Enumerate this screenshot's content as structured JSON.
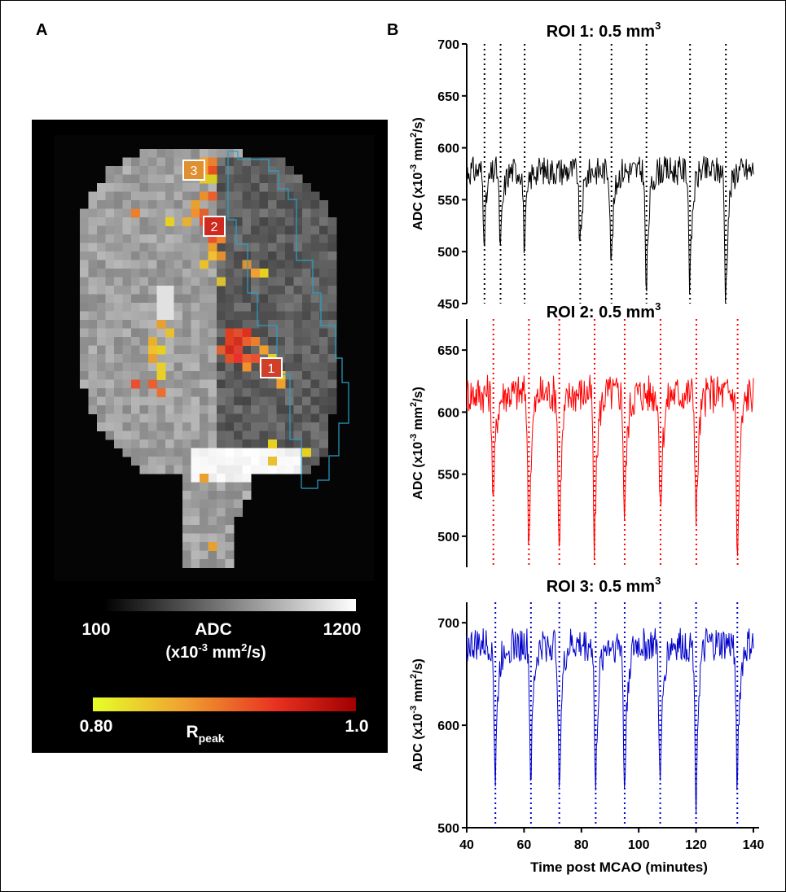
{
  "panel_labels": {
    "a": "A",
    "b": "B"
  },
  "brain_map": {
    "roi_markers": [
      "1",
      "2",
      "3"
    ],
    "adc_scale": {
      "min_label": "100",
      "max_label": "1200",
      "title": "ADC",
      "unit_prefix": "(x10",
      "unit_exp": "-3",
      "unit_mid": " mm",
      "unit_exp2": "2",
      "unit_suffix": "/s)"
    },
    "rpeak_scale": {
      "min_label": "0.80",
      "max_label": "1.0",
      "title": "R",
      "title_sub": "peak"
    },
    "colors": {
      "background": "#000000",
      "rpeak_low": "#e6f51e",
      "rpeak_mid": "#f08c28",
      "rpeak_high": "#a00000"
    }
  },
  "chart_data": [
    {
      "type": "line",
      "title": "ROI 1: 0.5 mm",
      "title_exp": "3",
      "ylabel_main": "ADC (x10",
      "ylabel_exp": "-3",
      "ylabel_mid": " mm",
      "ylabel_exp2": "2",
      "ylabel_end": "/s)",
      "color": "#000000",
      "ylim": [
        450,
        700
      ],
      "yticks": [
        450,
        500,
        550,
        600,
        650,
        700
      ],
      "xlim": [
        40,
        142
      ],
      "baseline": 578,
      "noise": 14,
      "dips": [
        {
          "t": 46.2,
          "min": 515
        },
        {
          "t": 51.8,
          "min": 500
        },
        {
          "t": 60.2,
          "min": 503
        },
        {
          "t": 79.6,
          "min": 500
        },
        {
          "t": 90.5,
          "min": 487
        },
        {
          "t": 102.7,
          "min": 458
        },
        {
          "t": 117.9,
          "min": 466
        },
        {
          "t": 130.4,
          "min": 453
        }
      ],
      "event_lines": [
        46.2,
        51.8,
        60.2,
        79.6,
        90.5,
        102.7,
        117.9,
        130.4
      ]
    },
    {
      "type": "line",
      "title": "ROI 2: 0.5 mm",
      "title_exp": "3",
      "ylabel_main": "ADC (x10",
      "ylabel_exp": "-3",
      "ylabel_mid": " mm",
      "ylabel_exp2": "2",
      "ylabel_end": "/s)",
      "color": "#ff0000",
      "ylim": [
        475,
        675
      ],
      "yticks": [
        500,
        550,
        600,
        650
      ],
      "xlim": [
        40,
        142
      ],
      "baseline": 615,
      "noise": 16,
      "dips": [
        {
          "t": 49.3,
          "min": 525
        },
        {
          "t": 61.7,
          "min": 490
        },
        {
          "t": 72.3,
          "min": 486
        },
        {
          "t": 84.6,
          "min": 483
        },
        {
          "t": 95.1,
          "min": 513
        },
        {
          "t": 107.6,
          "min": 512
        },
        {
          "t": 120.1,
          "min": 508
        },
        {
          "t": 134.5,
          "min": 478
        }
      ],
      "event_lines": [
        49.3,
        61.7,
        72.3,
        84.6,
        95.1,
        107.6,
        120.1,
        134.5
      ]
    },
    {
      "type": "line",
      "title": "ROI 3: 0.5 mm",
      "title_exp": "3",
      "ylabel_main": "ADC (x10",
      "ylabel_exp": "-3",
      "ylabel_mid": " mm",
      "ylabel_exp2": "2",
      "ylabel_end": "/s)",
      "color": "#0000cc",
      "ylim": [
        500,
        720
      ],
      "yticks": [
        500,
        600,
        700
      ],
      "xlim": [
        40,
        142
      ],
      "xticks": [
        40,
        60,
        80,
        100,
        120,
        140
      ],
      "xlabel": "Time post MCAO (minutes)",
      "baseline": 678,
      "noise": 17,
      "dips": [
        {
          "t": 50.0,
          "min": 545
        },
        {
          "t": 62.4,
          "min": 543
        },
        {
          "t": 72.3,
          "min": 540
        },
        {
          "t": 85.0,
          "min": 532
        },
        {
          "t": 95.1,
          "min": 532
        },
        {
          "t": 107.5,
          "min": 532
        },
        {
          "t": 120.0,
          "min": 530
        },
        {
          "t": 134.4,
          "min": 545
        }
      ],
      "event_lines": [
        50.0,
        62.4,
        72.3,
        85.0,
        95.1,
        107.5,
        120.0,
        134.4
      ]
    }
  ]
}
